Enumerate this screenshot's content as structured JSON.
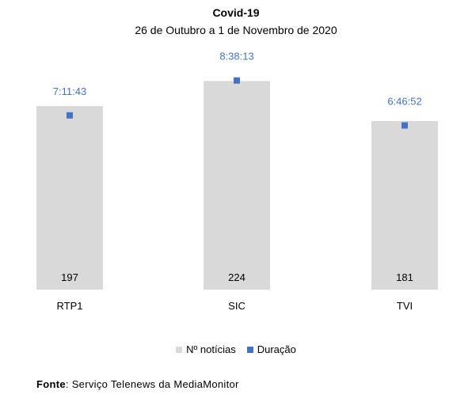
{
  "chart_data": {
    "type": "bar",
    "title": "Covid-19",
    "subtitle": "26 de Outubro a 1 de Novembro de 2020",
    "categories": [
      "RTP1",
      "SIC",
      "TVI"
    ],
    "series": [
      {
        "name": "Nº notícias",
        "kind": "bar",
        "values": [
          197,
          224,
          181
        ],
        "ylim": [
          0,
          260
        ],
        "color": "#d9d9d9"
      },
      {
        "name": "Duração",
        "kind": "marker",
        "values": [
          "7:11:43",
          "8:38:13",
          "6:46:52"
        ],
        "ylim": [
          0,
          36000
        ],
        "color": "#4472c4"
      }
    ],
    "legend_position": "bottom",
    "grid": false
  },
  "source": {
    "label": "Fonte",
    "text": ": Serviço Telenews da MediaMonitor"
  }
}
